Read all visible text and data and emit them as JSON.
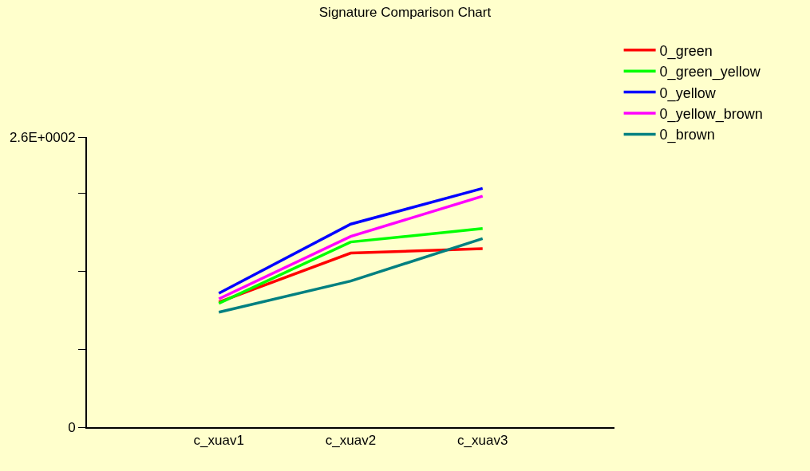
{
  "chart_data": {
    "type": "line",
    "title": "Signature Comparison Chart",
    "categories": [
      "c_xuav1",
      "c_xuav2",
      "c_xuav3"
    ],
    "series": [
      {
        "name": "0_green",
        "color": "#ff0000",
        "values": [
          112,
          156,
          160
        ]
      },
      {
        "name": "0_green_yellow",
        "color": "#00ff00",
        "values": [
          111,
          166,
          178
        ]
      },
      {
        "name": "0_yellow",
        "color": "#0000ff",
        "values": [
          120,
          182,
          214
        ]
      },
      {
        "name": "0_yellow_brown",
        "color": "#ff00ff",
        "values": [
          115,
          171,
          207
        ]
      },
      {
        "name": "0_brown",
        "color": "#008080",
        "values": [
          103,
          131,
          169
        ]
      }
    ],
    "ylim": [
      0,
      260
    ],
    "yticks": [
      0,
      {
        "value": 70,
        "label": null
      },
      {
        "value": 140,
        "label": null
      },
      {
        "value": 210,
        "label": null
      },
      {
        "value": 260,
        "label": "2.6E+0002"
      }
    ],
    "grid": false,
    "legend": "top right",
    "marker": "none",
    "line_style": "solid"
  }
}
